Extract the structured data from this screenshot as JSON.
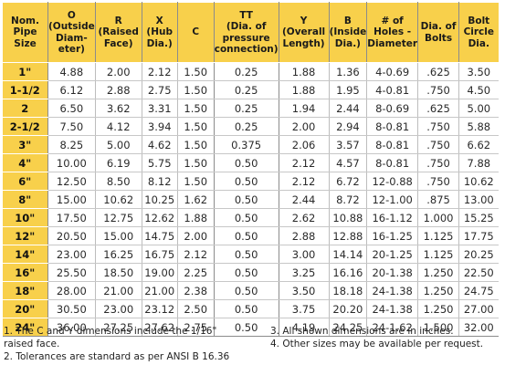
{
  "headers": [
    "Nom. Pipe Size",
    "O (Outside Diam-eter)",
    "R (Raised Face)",
    "X (Hub Dia.)",
    "C",
    "TT (Dia. of pressure connection)",
    "Y (Overall Length)",
    "B (Inside Dia.)",
    "# of Holes - Diameter",
    "Dia. of Bolts",
    "Bolt Circle Dia."
  ],
  "header_lines": [
    [
      "Nom.",
      "Pipe",
      "Size"
    ],
    [
      "O",
      "(Outside",
      "Diam-",
      "eter)"
    ],
    [
      "R",
      "(Raised",
      "Face)"
    ],
    [
      "X",
      "(Hub",
      "Dia.)"
    ],
    [
      "C"
    ],
    [
      "TT",
      "(Dia. of",
      "pressure",
      "connection)"
    ],
    [
      "Y",
      "(Overall",
      "Length)"
    ],
    [
      "B",
      "(Inside",
      "Dia.)"
    ],
    [
      "# of",
      "Holes -",
      "Diameter"
    ],
    [
      "Dia. of",
      "Bolts"
    ],
    [
      "Bolt",
      "Circle",
      "Dia."
    ]
  ],
  "rows": [
    [
      "1\"",
      "4.88",
      "2.00",
      "2.12",
      "1.50",
      "0.25",
      "1.88",
      "1.36",
      "4-0.69",
      ".625",
      "3.50"
    ],
    [
      "1-1/2",
      "6.12",
      "2.88",
      "2.75",
      "1.50",
      "0.25",
      "1.88",
      "1.95",
      "4-0.81",
      ".750",
      "4.50"
    ],
    [
      "2",
      "6.50",
      "3.62",
      "3.31",
      "1.50",
      "0.25",
      "1.94",
      "2.44",
      "8-0.69",
      ".625",
      "5.00"
    ],
    [
      "2-1/2",
      "7.50",
      "4.12",
      "3.94",
      "1.50",
      "0.25",
      "2.00",
      "2.94",
      "8-0.81",
      ".750",
      "5.88"
    ],
    [
      "3\"",
      "8.25",
      "5.00",
      "4.62",
      "1.50",
      "0.375",
      "2.06",
      "3.57",
      "8-0.81",
      ".750",
      "6.62"
    ],
    [
      "4\"",
      "10.00",
      "6.19",
      "5.75",
      "1.50",
      "0.50",
      "2.12",
      "4.57",
      "8-0.81",
      ".750",
      "7.88"
    ],
    [
      "6\"",
      "12.50",
      "8.50",
      "8.12",
      "1.50",
      "0.50",
      "2.12",
      "6.72",
      "12-0.88",
      ".750",
      "10.62"
    ],
    [
      "8\"",
      "15.00",
      "10.62",
      "10.25",
      "1.62",
      "0.50",
      "2.44",
      "8.72",
      "12-1.00",
      ".875",
      "13.00"
    ],
    [
      "10\"",
      "17.50",
      "12.75",
      "12.62",
      "1.88",
      "0.50",
      "2.62",
      "10.88",
      "16-1.12",
      "1.000",
      "15.25"
    ],
    [
      "12\"",
      "20.50",
      "15.00",
      "14.75",
      "2.00",
      "0.50",
      "2.88",
      "12.88",
      "16-1.25",
      "1.125",
      "17.75"
    ],
    [
      "14\"",
      "23.00",
      "16.25",
      "16.75",
      "2.12",
      "0.50",
      "3.00",
      "14.14",
      "20-1.25",
      "1.125",
      "20.25"
    ],
    [
      "16\"",
      "25.50",
      "18.50",
      "19.00",
      "2.25",
      "0.50",
      "3.25",
      "16.16",
      "20-1.38",
      "1.250",
      "22.50"
    ],
    [
      "18\"",
      "28.00",
      "21.00",
      "21.00",
      "2.38",
      "0.50",
      "3.50",
      "18.18",
      "24-1.38",
      "1.250",
      "24.75"
    ],
    [
      "20\"",
      "30.50",
      "23.00",
      "23.12",
      "2.50",
      "0.50",
      "3.75",
      "20.20",
      "24-1.38",
      "1.250",
      "27.00"
    ],
    [
      "24\"",
      "36.00",
      "27.25",
      "27.62",
      "2.75",
      "0.50",
      "4.19",
      "24.25",
      "24-1.62",
      "1.500",
      "32.00"
    ]
  ],
  "notes_left": [
    "1. The C and Y dimensions include the 1/16\"",
    "raised face.",
    "2. Tolerances are standard as per ANSI B 16.36"
  ],
  "notes_right": [
    "3. All shown dimensions are in inches.",
    "4. Other sizes may be available per request."
  ],
  "colors": {
    "header_bg": "#f8d04b",
    "grid": "#c7c7c7",
    "text": "#222222"
  }
}
